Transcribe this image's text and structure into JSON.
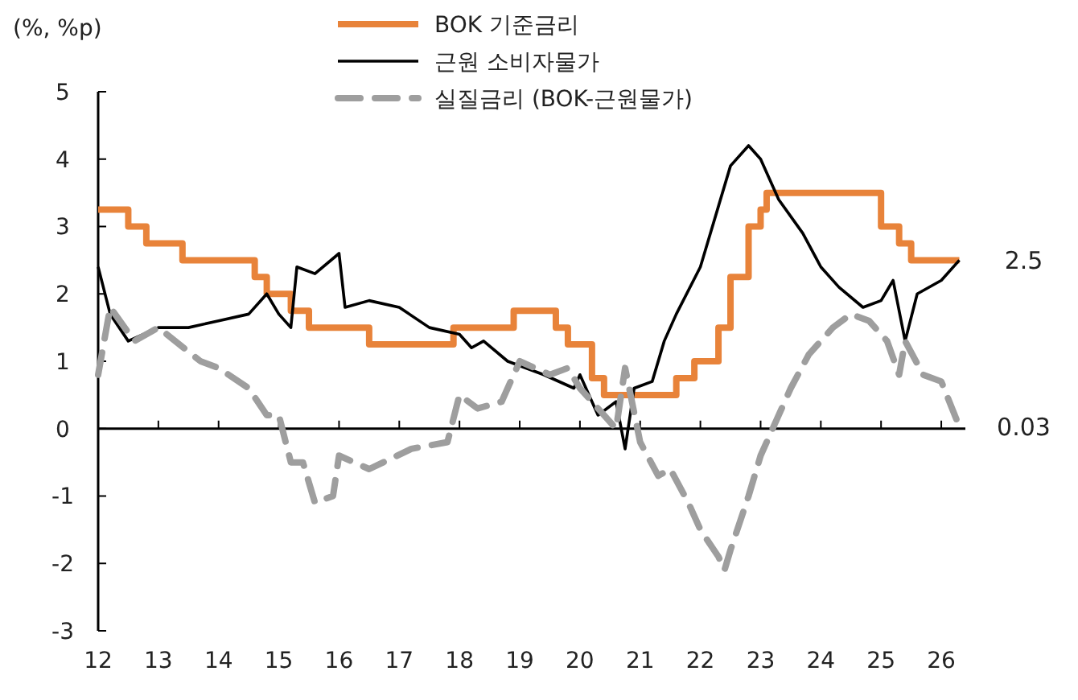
{
  "chart_data": {
    "type": "line",
    "ylabel": "(%, %p)",
    "xlim": [
      12,
      26.4
    ],
    "xticks": [
      12,
      13,
      14,
      15,
      16,
      17,
      18,
      19,
      20,
      21,
      22,
      23,
      24,
      25,
      26
    ],
    "ylim": [
      -3,
      5
    ],
    "yticks": [
      -3,
      -2,
      -1,
      0,
      1,
      2,
      3,
      4,
      5
    ],
    "legend": "top",
    "series": [
      {
        "name": "BOK 기준금리",
        "color": "#e8833a",
        "type": "step",
        "line_style": "solid",
        "x": [
          12,
          12.5,
          12.8,
          13.4,
          14.6,
          14.8,
          15.2,
          15.5,
          16.5,
          17.9,
          18.9,
          19.6,
          19.8,
          20.2,
          20.4,
          21.6,
          21.9,
          22.3,
          22.5,
          22.8,
          23.0,
          23.1,
          24.8,
          25.0,
          25.3,
          25.5,
          26.3
        ],
        "values": [
          3.25,
          3.0,
          2.75,
          2.5,
          2.25,
          2.0,
          1.75,
          1.5,
          1.25,
          1.5,
          1.75,
          1.5,
          1.25,
          0.75,
          0.5,
          0.75,
          1.0,
          1.5,
          2.25,
          3.0,
          3.25,
          3.5,
          3.5,
          3.0,
          2.75,
          2.5,
          2.5
        ]
      },
      {
        "name": "근원 소비자물가",
        "color": "#000000",
        "line_style": "solid",
        "x": [
          12,
          12.2,
          12.5,
          13.0,
          13.5,
          14.0,
          14.5,
          14.8,
          15.0,
          15.2,
          15.3,
          15.6,
          16.0,
          16.1,
          16.5,
          17.0,
          17.5,
          18.0,
          18.2,
          18.4,
          18.8,
          19.4,
          19.9,
          20.0,
          20.3,
          20.6,
          20.75,
          20.9,
          21.2,
          21.4,
          21.6,
          22.0,
          22.3,
          22.5,
          22.8,
          23.0,
          23.3,
          23.7,
          24.0,
          24.3,
          24.7,
          25.0,
          25.2,
          25.4,
          25.6,
          26.0,
          26.3
        ],
        "values": [
          2.4,
          1.7,
          1.3,
          1.5,
          1.5,
          1.6,
          1.7,
          2.0,
          1.7,
          1.5,
          2.4,
          2.3,
          2.6,
          1.8,
          1.9,
          1.8,
          1.5,
          1.4,
          1.2,
          1.3,
          1.0,
          0.8,
          0.6,
          0.8,
          0.2,
          0.4,
          -0.3,
          0.6,
          0.7,
          1.3,
          1.7,
          2.4,
          3.3,
          3.9,
          4.2,
          4.0,
          3.4,
          2.9,
          2.4,
          2.1,
          1.8,
          1.9,
          2.2,
          1.3,
          2.0,
          2.2,
          2.5
        ]
      },
      {
        "name": "실질금리 (BOK-근원물가)",
        "color": "#9e9e9e",
        "line_style": "dashed",
        "x": [
          12,
          12.2,
          12.6,
          13.0,
          13.7,
          14.0,
          14.5,
          14.8,
          15.0,
          15.2,
          15.4,
          15.6,
          15.9,
          16.0,
          16.5,
          17.2,
          17.8,
          18.0,
          18.3,
          18.7,
          19.0,
          19.5,
          19.8,
          20.0,
          20.3,
          20.6,
          20.75,
          21.0,
          21.3,
          21.5,
          21.8,
          22.0,
          22.3,
          22.4,
          22.5,
          22.8,
          23.0,
          23.2,
          23.5,
          23.8,
          24.2,
          24.5,
          24.8,
          25.1,
          25.3,
          25.4,
          25.7,
          26.0,
          26.3
        ],
        "values": [
          0.8,
          1.8,
          1.3,
          1.5,
          1.0,
          0.9,
          0.6,
          0.2,
          0.2,
          -0.5,
          -0.5,
          -1.1,
          -1.0,
          -0.4,
          -0.6,
          -0.3,
          -0.2,
          0.5,
          0.3,
          0.4,
          1.0,
          0.8,
          0.9,
          0.6,
          0.3,
          0.0,
          0.9,
          -0.2,
          -0.7,
          -0.6,
          -1.1,
          -1.5,
          -1.9,
          -2.1,
          -1.8,
          -1.0,
          -0.4,
          0.0,
          0.6,
          1.1,
          1.5,
          1.7,
          1.6,
          1.3,
          0.8,
          1.3,
          0.8,
          0.7,
          0.03
        ]
      }
    ],
    "annotations": [
      {
        "text": "2.5",
        "x": 26.3,
        "y": 2.5
      },
      {
        "text": "0.03",
        "x": 26.3,
        "y": 0.03
      }
    ]
  }
}
